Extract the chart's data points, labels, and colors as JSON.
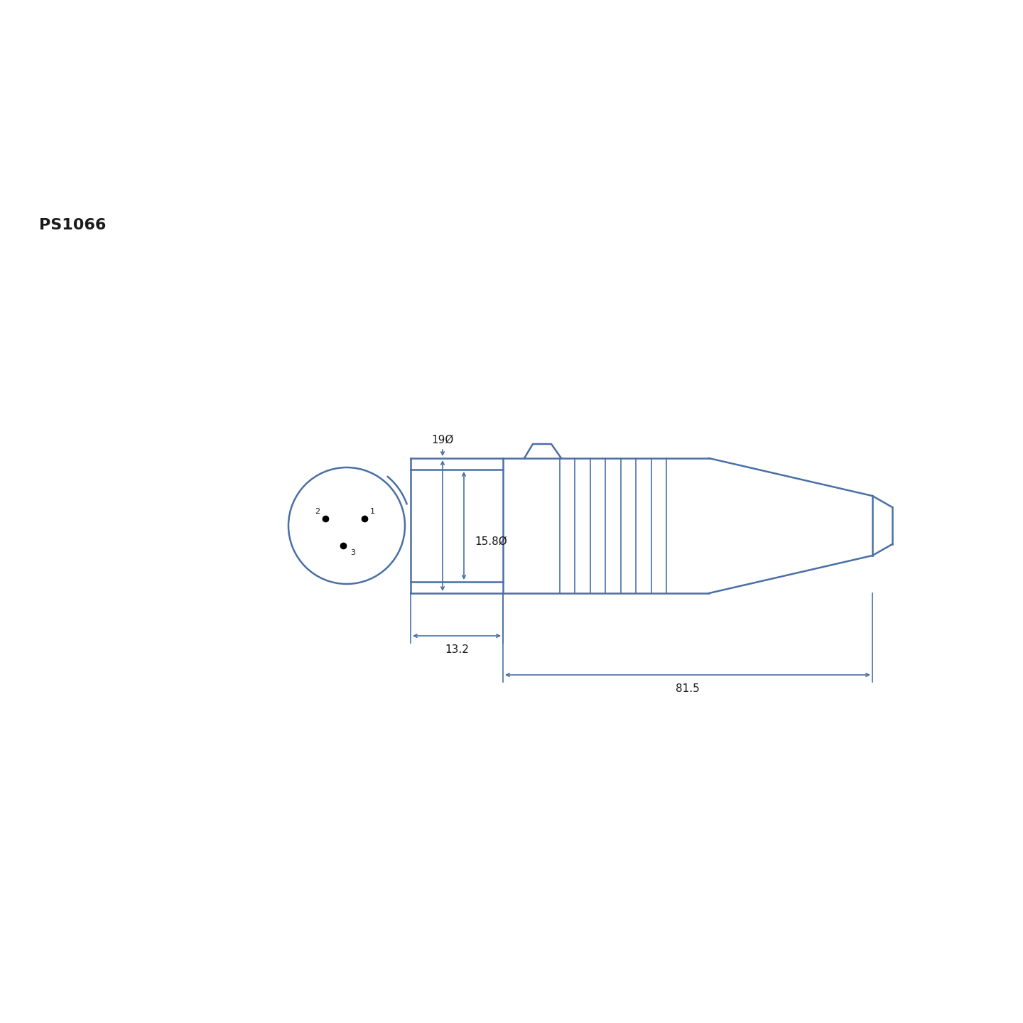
{
  "bg_color": "#ffffff",
  "line_color": "#4a6fa5",
  "text_color": "#1a1a1a",
  "part_number": "PS1066",
  "dim_19": "19Ø",
  "dim_158": "15.8Ø",
  "dim_132": "13.2",
  "dim_815": "81.5",
  "title_fontsize": 16,
  "dim_fontsize": 10,
  "label_fontsize": 8
}
